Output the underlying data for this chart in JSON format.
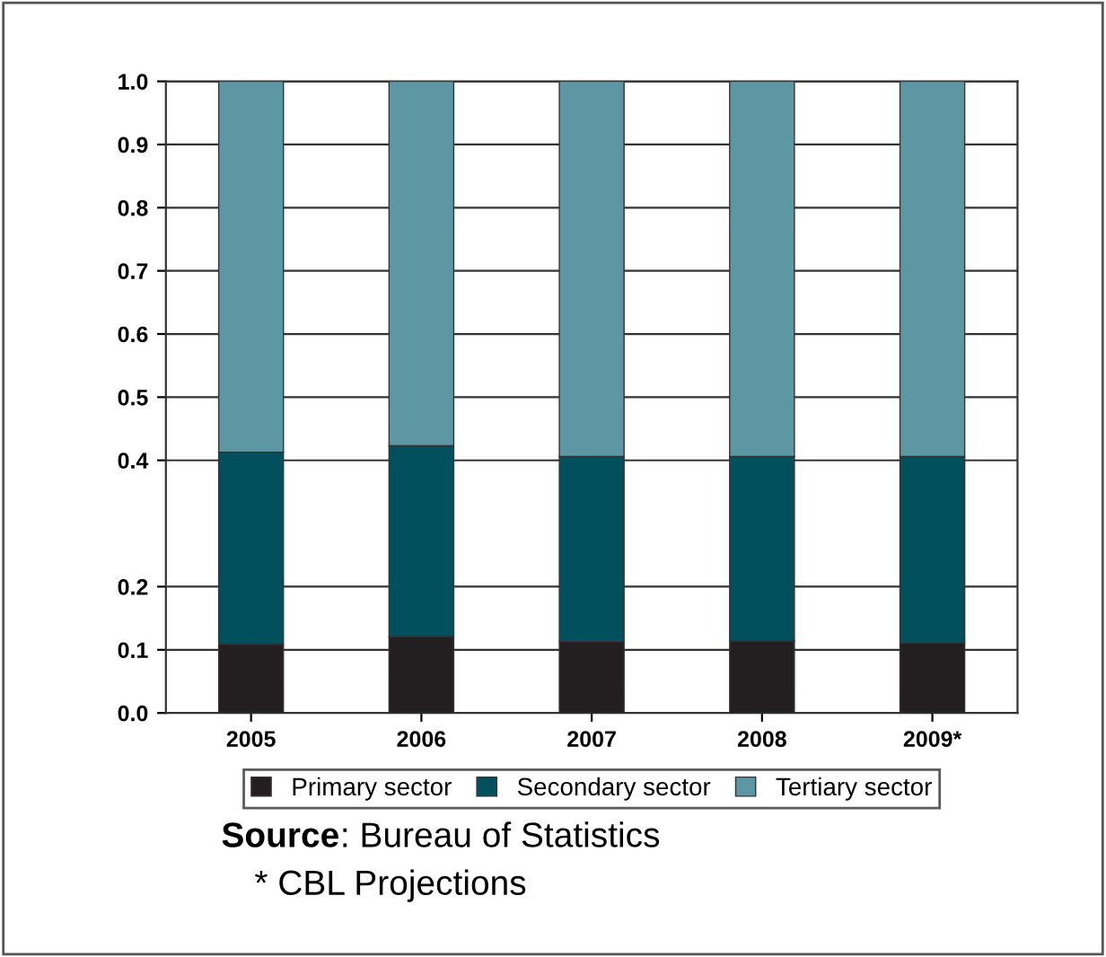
{
  "chart_data": {
    "type": "bar",
    "stacked": true,
    "categories": [
      "2005",
      "2006",
      "2007",
      "2008",
      "2009*"
    ],
    "series": [
      {
        "name": "Primary sector",
        "color": "#231f20",
        "values": [
          0.109,
          0.121,
          0.113,
          0.114,
          0.111
        ]
      },
      {
        "name": "Secondary sector",
        "color": "#02505e",
        "values": [
          0.304,
          0.302,
          0.293,
          0.292,
          0.295
        ]
      },
      {
        "name": "Tertiary sector",
        "color": "#5d97a3",
        "values": [
          0.587,
          0.577,
          0.594,
          0.594,
          0.594
        ]
      }
    ],
    "ylim": [
      0,
      1
    ],
    "yticks": [
      {
        "value": 0,
        "label": "0.0"
      },
      {
        "value": 0.1,
        "label": "0.1"
      },
      {
        "value": 0.2,
        "label": "0.2"
      },
      {
        "value": 0.4,
        "label": "0.4"
      },
      {
        "value": 0.5,
        "label": "0.5"
      },
      {
        "value": 0.6,
        "label": "0.6"
      },
      {
        "value": 0.7,
        "label": "0.7"
      },
      {
        "value": 0.8,
        "label": "0.8"
      },
      {
        "value": 0.9,
        "label": "0.9"
      },
      {
        "value": 1,
        "label": "1.0"
      }
    ],
    "grid": "y",
    "legend": "bottom",
    "annotations": [
      "Source: Bureau of Statistics",
      "* CBL Projections"
    ]
  }
}
